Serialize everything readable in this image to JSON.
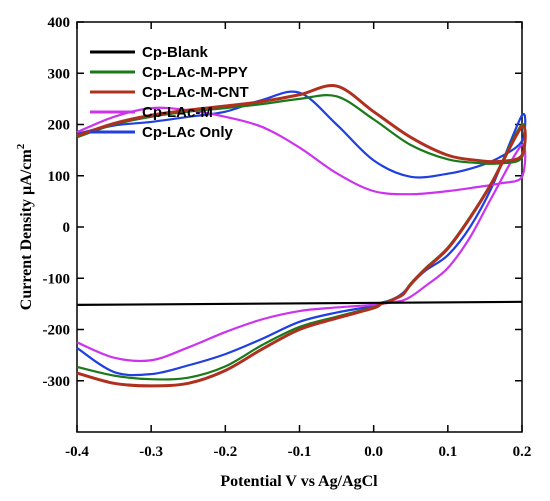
{
  "chart_data": {
    "type": "line",
    "title": "",
    "xlabel": "Potential V vs Ag/AgCl",
    "ylabel_prefix": "Current Density ",
    "ylabel_unit": "µA/cm",
    "ylabel_sup": "2",
    "xlim": [
      -0.4,
      0.2
    ],
    "ylim": [
      -400,
      400
    ],
    "x_ticks": [
      "-0.4",
      "-0.3",
      "-0.2",
      "-0.1",
      "0.0",
      "0.1",
      "0.2"
    ],
    "x_tick_values": [
      -0.4,
      -0.3,
      -0.2,
      -0.1,
      0.0,
      0.1,
      0.2
    ],
    "y_ticks": [
      "400",
      "300",
      "200",
      "100",
      "0",
      "-100",
      "-200",
      "-300"
    ],
    "y_tick_values": [
      400,
      300,
      200,
      100,
      0,
      -100,
      -200,
      -300
    ],
    "legend_position": "top-left",
    "grid": false,
    "series": [
      {
        "name": "Cp-Blank",
        "color": "#000000",
        "x": [
          -0.4,
          0.2
        ],
        "y": [
          -152,
          -146
        ]
      },
      {
        "name": "Cp-LAc-M-PPY",
        "color": "#1a7a1a",
        "x": [
          -0.4,
          -0.35,
          -0.3,
          -0.25,
          -0.2,
          -0.15,
          -0.1,
          -0.05,
          0.0,
          0.01,
          0.02,
          0.03,
          0.04,
          0.05,
          0.07,
          0.1,
          0.13,
          0.16,
          0.2,
          0.2,
          0.17,
          0.14,
          0.1,
          0.05,
          0.0,
          -0.05,
          -0.1,
          -0.15,
          -0.2,
          -0.25,
          -0.3,
          -0.35,
          -0.4
        ],
        "y": [
          -273,
          -290,
          -297,
          -294,
          -272,
          -230,
          -195,
          -175,
          -156,
          -148,
          -145,
          -138,
          -130,
          -110,
          -80,
          -40,
          20,
          90,
          200,
          136,
          124,
          125,
          132,
          160,
          210,
          255,
          250,
          240,
          232,
          225,
          215,
          200,
          175
        ]
      },
      {
        "name": "Cp-LAc-M-CNT",
        "color": "#b03020",
        "x": [
          -0.4,
          -0.35,
          -0.3,
          -0.25,
          -0.2,
          -0.15,
          -0.1,
          -0.05,
          0.0,
          0.01,
          0.02,
          0.03,
          0.04,
          0.05,
          0.07,
          0.1,
          0.13,
          0.16,
          0.2,
          0.2,
          0.17,
          0.14,
          0.1,
          0.05,
          0.0,
          -0.05,
          -0.1,
          -0.15,
          -0.2,
          -0.25,
          -0.3,
          -0.35,
          -0.4
        ],
        "y": [
          -285,
          -305,
          -310,
          -305,
          -280,
          -238,
          -200,
          -178,
          -158,
          -150,
          -146,
          -139,
          -131,
          -112,
          -82,
          -42,
          18,
          88,
          196,
          140,
          128,
          130,
          140,
          175,
          225,
          275,
          258,
          245,
          236,
          228,
          218,
          202,
          178
        ]
      },
      {
        "name": "Cp-LAc-M",
        "color": "#cc33ee",
        "x": [
          -0.4,
          -0.35,
          -0.3,
          -0.25,
          -0.2,
          -0.15,
          -0.1,
          -0.05,
          0.0,
          0.01,
          0.02,
          0.03,
          0.04,
          0.05,
          0.07,
          0.1,
          0.13,
          0.16,
          0.2,
          0.2,
          0.17,
          0.14,
          0.1,
          0.05,
          0.0,
          -0.05,
          -0.1,
          -0.15,
          -0.2,
          -0.25,
          -0.3,
          -0.35,
          -0.4
        ],
        "y": [
          -225,
          -255,
          -260,
          -235,
          -205,
          -180,
          -164,
          -157,
          -152,
          -150,
          -148,
          -146,
          -143,
          -136,
          -115,
          -80,
          -20,
          60,
          160,
          98,
          85,
          78,
          70,
          64,
          70,
          105,
          155,
          195,
          215,
          228,
          232,
          215,
          185
        ]
      },
      {
        "name": "Cp-LAc Only",
        "color": "#1f3fe0",
        "x": [
          -0.4,
          -0.35,
          -0.3,
          -0.25,
          -0.2,
          -0.15,
          -0.1,
          -0.05,
          0.0,
          0.01,
          0.02,
          0.03,
          0.04,
          0.05,
          0.07,
          0.1,
          0.13,
          0.16,
          0.2,
          0.2,
          0.17,
          0.14,
          0.1,
          0.05,
          0.0,
          -0.05,
          -0.1,
          -0.15,
          -0.2,
          -0.25,
          -0.3,
          -0.35,
          -0.4
        ],
        "y": [
          -236,
          -283,
          -287,
          -270,
          -248,
          -218,
          -185,
          -167,
          -154,
          -148,
          -144,
          -138,
          -128,
          -112,
          -85,
          -55,
          0,
          80,
          218,
          168,
          136,
          118,
          104,
          98,
          130,
          200,
          262,
          248,
          225,
          215,
          205,
          198,
          182
        ]
      }
    ]
  }
}
